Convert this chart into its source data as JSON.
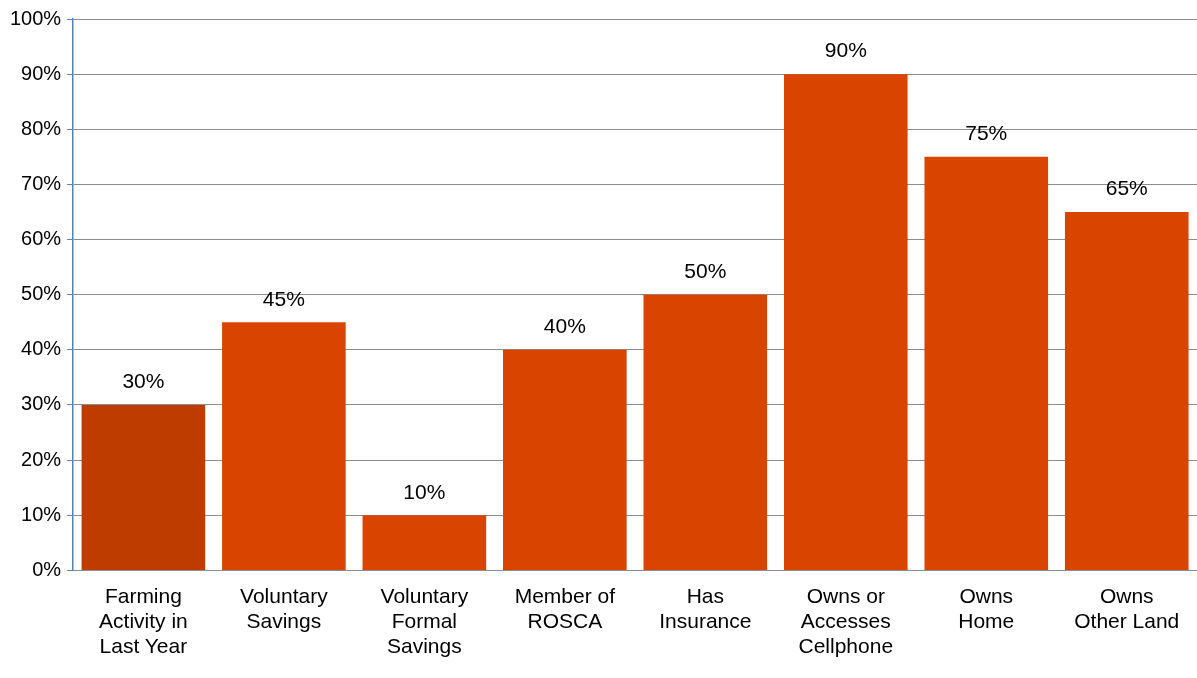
{
  "chart_data": {
    "type": "bar",
    "categories": [
      "Farming Activity in Last Year",
      "Voluntary Savings",
      "Voluntary Formal Savings",
      "Member of ROSCA",
      "Has Insurance",
      "Owns or Accesses Cellphone",
      "Owns Home",
      "Owns Other Land"
    ],
    "values": [
      30,
      45,
      10,
      40,
      50,
      90,
      75,
      65
    ],
    "colors": [
      "#bf3c00",
      "#d94400",
      "#d94400",
      "#d94400",
      "#d94400",
      "#d94400",
      "#d94400",
      "#d94400"
    ],
    "value_labels": [
      "30%",
      "45%",
      "10%",
      "40%",
      "50%",
      "90%",
      "75%",
      "65%"
    ],
    "ylim": [
      0,
      100
    ],
    "yticks": [
      {
        "value": 0,
        "label": "0%"
      },
      {
        "value": 10,
        "label": "10%"
      },
      {
        "value": 20,
        "label": "20%"
      },
      {
        "value": 30,
        "label": "30%"
      },
      {
        "value": 40,
        "label": "40%"
      },
      {
        "value": 50,
        "label": "50%"
      },
      {
        "value": 60,
        "label": "60%"
      },
      {
        "value": 70,
        "label": "70%"
      },
      {
        "value": 80,
        "label": "80%"
      },
      {
        "value": 90,
        "label": "90%"
      },
      {
        "value": 100,
        "label": "100%"
      }
    ],
    "grid": "y",
    "legend": false
  }
}
